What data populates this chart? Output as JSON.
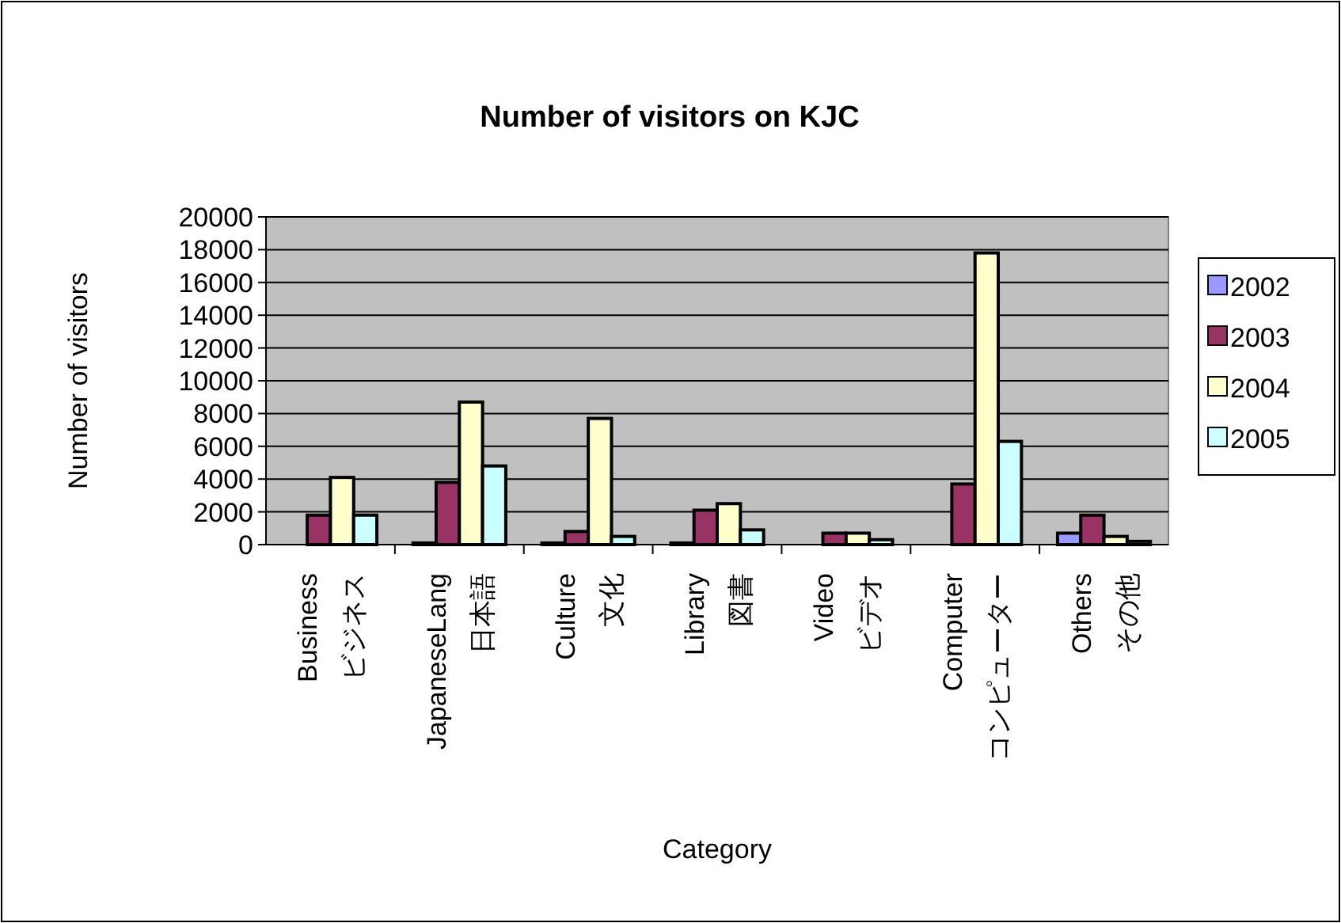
{
  "chart_data": {
    "type": "bar",
    "title": "Number of visitors on KJC",
    "xlabel": "Category",
    "ylabel": "Number of visitors",
    "categories": [
      "Business\nビジネス",
      "JapaneseLang\n日本語",
      "Culture\n文化",
      "Library\n図書",
      "Video\nビデオ",
      "Computer\nコンピューター",
      "Others\nその他"
    ],
    "series": [
      {
        "name": "2002",
        "color": "#9999ff",
        "values": [
          0,
          100,
          100,
          100,
          0,
          0,
          700
        ]
      },
      {
        "name": "2003",
        "color": "#993366",
        "values": [
          1800,
          3800,
          800,
          2100,
          700,
          3700,
          1800
        ]
      },
      {
        "name": "2004",
        "color": "#ffffcc",
        "values": [
          4100,
          8700,
          7700,
          2500,
          700,
          17800,
          500
        ]
      },
      {
        "name": "2005",
        "color": "#ccffff",
        "values": [
          1800,
          4800,
          500,
          900,
          300,
          6300,
          200
        ]
      }
    ],
    "ylim": [
      0,
      20000
    ],
    "yticks": [
      0,
      2000,
      4000,
      6000,
      8000,
      10000,
      12000,
      14000,
      16000,
      18000,
      20000
    ],
    "grid": "y",
    "legend": "right"
  }
}
